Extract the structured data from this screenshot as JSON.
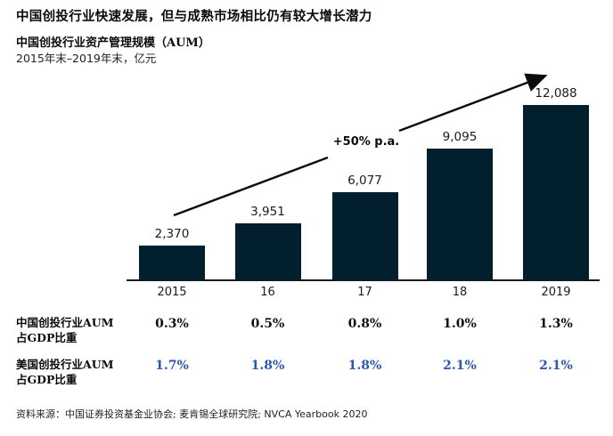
{
  "page": {
    "title": "中国创投行业快速发展，但与成熟市场相比仍有较大增长潜力",
    "chart_title": "中国创投行业资产管理规模（AUM）",
    "chart_subtitle": "2015年末–2019年末，亿元",
    "source_prefix": "资料来源：中国证券投资基金业协会; 麦肯锡全球研究院; ",
    "source_suffix": "NVCA Yearbook 2020"
  },
  "colors": {
    "bar": "#021f2e",
    "axis": "#1b1b1b",
    "china_row_text": "#111111",
    "us_row_text": "#2c58b1"
  },
  "chart_data": {
    "type": "bar",
    "title": "中国创投行业资产管理规模（AUM）",
    "subtitle": "2015年末–2019年末，亿元",
    "unit": "亿元",
    "categories": [
      "2015",
      "16",
      "17",
      "18",
      "2019"
    ],
    "values": [
      2370,
      3951,
      6077,
      9095,
      12088
    ],
    "value_labels": [
      "2,370",
      "3,951",
      "6,077",
      "9,095",
      "12,088"
    ],
    "annotation": "+50% p.a.",
    "ylim": [
      0,
      12088
    ],
    "grid": "off",
    "legend": "none",
    "table_rows": [
      {
        "label_line1": "中国创投行业AUM",
        "label_line2": "占GDP比重",
        "values": [
          "0.3%",
          "0.5%",
          "0.8%",
          "1.0%",
          "1.3%"
        ]
      },
      {
        "label_line1": "美国创投行业AUM",
        "label_line2": "占GDP比重",
        "values": [
          "1.7%",
          "1.8%",
          "1.8%",
          "2.1%",
          "2.1%"
        ]
      }
    ]
  }
}
